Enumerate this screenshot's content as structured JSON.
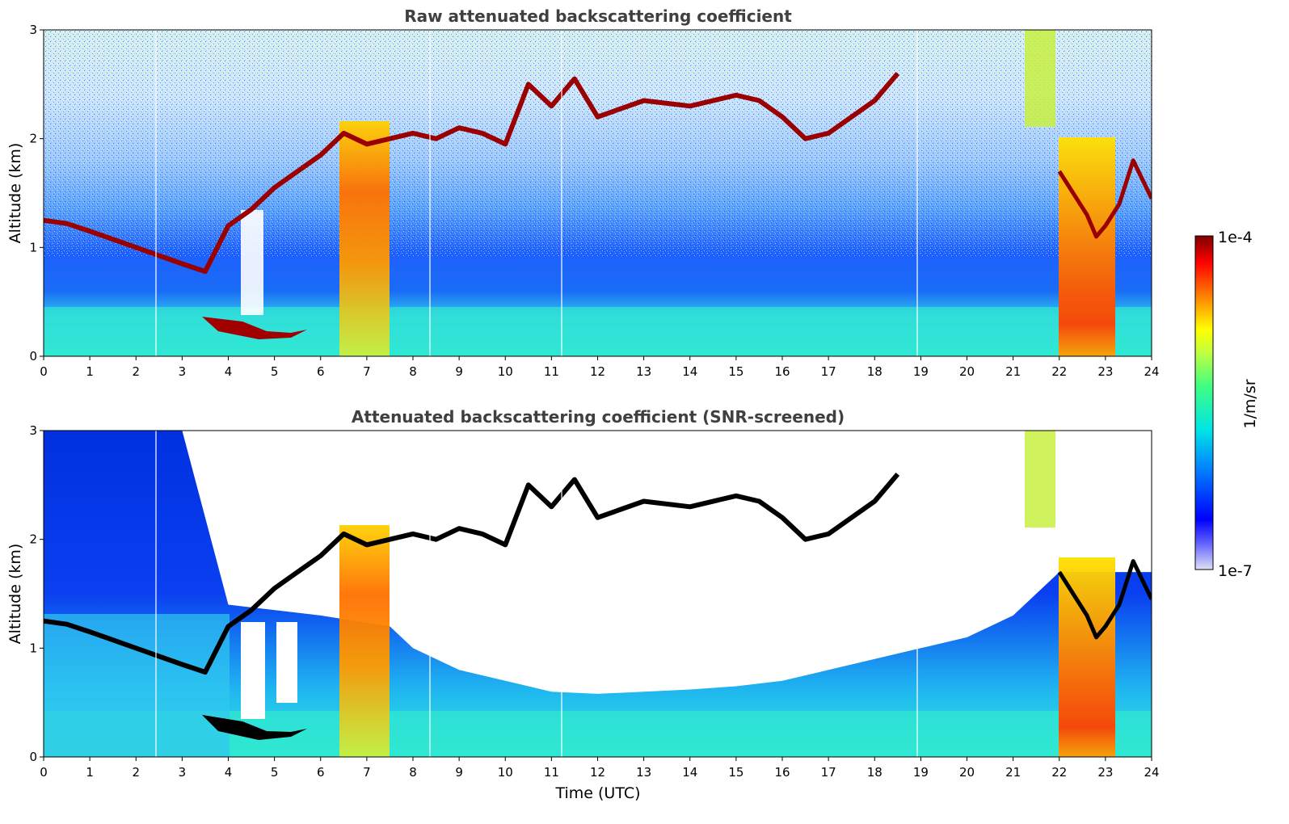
{
  "chart_data": [
    {
      "type": "heatmap",
      "title": "Raw attenuated backscattering coefficient",
      "xlabel": "",
      "ylabel": "Altitude (km)",
      "xlim": [
        0,
        24
      ],
      "ylim": [
        0,
        3
      ],
      "xticks": [
        "0",
        "1",
        "2",
        "3",
        "4",
        "5",
        "6",
        "7",
        "8",
        "9",
        "10",
        "11",
        "12",
        "13",
        "14",
        "15",
        "16",
        "17",
        "18",
        "19",
        "20",
        "21",
        "22",
        "23",
        "24"
      ],
      "yticks": [
        "0",
        "1",
        "2",
        "3"
      ],
      "screened": false,
      "layer_top_km": {
        "x": [
          0,
          0.5,
          1,
          2,
          3,
          3.5,
          4,
          4.5,
          5,
          5.5,
          6,
          6.5,
          7,
          7.5,
          8,
          8.5,
          9,
          9.5,
          10,
          10.5,
          11,
          11.5,
          12,
          13,
          14,
          15,
          15.5,
          16,
          16.5,
          17,
          17.5,
          18,
          18.5
        ],
        "y": [
          1.25,
          1.22,
          1.15,
          1.0,
          0.85,
          0.78,
          1.2,
          1.35,
          1.55,
          1.7,
          1.85,
          2.05,
          1.95,
          2.0,
          2.05,
          2.0,
          2.1,
          2.05,
          1.95,
          2.5,
          2.3,
          2.55,
          2.2,
          2.35,
          2.3,
          2.4,
          2.35,
          2.2,
          2.0,
          2.05,
          2.2,
          2.35,
          2.6
        ]
      },
      "late_layer_km": {
        "x": [
          22,
          22.3,
          22.6,
          22.8,
          23,
          23.3,
          23.6,
          24
        ],
        "y": [
          1.7,
          1.5,
          1.3,
          1.1,
          1.2,
          1.4,
          1.8,
          1.45
        ]
      }
    },
    {
      "type": "heatmap",
      "title": "Attenuated backscattering coefficient (SNR-screened)",
      "xlabel": "Time (UTC)",
      "ylabel": "Altitude (km)",
      "xlim": [
        0,
        24
      ],
      "ylim": [
        0,
        3
      ],
      "xticks": [
        "0",
        "1",
        "2",
        "3",
        "4",
        "5",
        "6",
        "7",
        "8",
        "9",
        "10",
        "11",
        "12",
        "13",
        "14",
        "15",
        "16",
        "17",
        "18",
        "19",
        "20",
        "21",
        "22",
        "23",
        "24"
      ],
      "yticks": [
        "0",
        "1",
        "2",
        "3"
      ],
      "screened": true,
      "screened_boundary_km": {
        "x": [
          0,
          3,
          4,
          6,
          7.5,
          8,
          9,
          10,
          11,
          12,
          13,
          14,
          15,
          16,
          17,
          18,
          19,
          20,
          21,
          21.5,
          22
        ],
        "y": [
          3,
          3,
          1.4,
          1.3,
          1.2,
          1.0,
          0.8,
          0.7,
          0.6,
          0.58,
          0.6,
          0.62,
          0.65,
          0.7,
          0.8,
          0.9,
          1.0,
          1.1,
          1.3,
          1.5,
          1.7
        ]
      }
    }
  ],
  "colorbar": {
    "min_label": "1e-7",
    "max_label": "1e-4",
    "unit": "1/m/sr",
    "colors": [
      "#e0e0f5",
      "#0000ff",
      "#0080ff",
      "#00e5e5",
      "#40ff80",
      "#c0ff40",
      "#ffff00",
      "#ff8000",
      "#ff0000",
      "#800000"
    ]
  }
}
